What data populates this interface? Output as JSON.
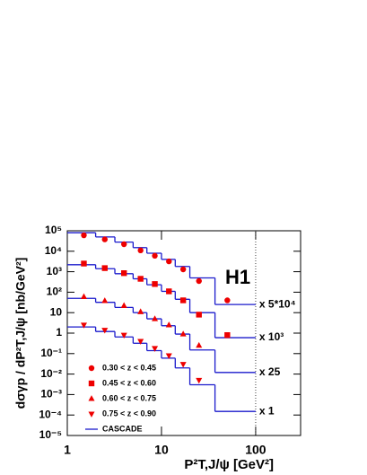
{
  "chart_data": {
    "type": "scatter",
    "xscale": "log",
    "yscale": "log",
    "xlabel": "P²T,J/ψ [GeV²]",
    "ylabel": "dσγp / dP²T,J/ψ  [nb/GeV²]",
    "annotation": "H1",
    "xlim": [
      1,
      300
    ],
    "ylim": [
      1e-05,
      100000
    ],
    "xticks": [
      1,
      10,
      100
    ],
    "yticks": [
      {
        "value": 100000,
        "label": "10⁵"
      },
      {
        "value": 10000,
        "label": "10⁴"
      },
      {
        "value": 1000,
        "label": "10³"
      },
      {
        "value": 100,
        "label": "10²"
      },
      10,
      1,
      {
        "value": 0.1,
        "label": "10⁻¹"
      },
      {
        "value": 0.01,
        "label": "10⁻²"
      },
      {
        "value": 0.001,
        "label": "10⁻³"
      },
      {
        "value": 0.0001,
        "label": "10⁻⁴"
      },
      {
        "value": 1e-05,
        "label": "10⁻⁵"
      }
    ],
    "series": [
      {
        "name": "0.30 < z < 0.45",
        "marker": "circle",
        "color": "#ee0000",
        "x": [
          1.5,
          2.5,
          4,
          6,
          8.5,
          12,
          17,
          25,
          50
        ],
        "values": [
          60000,
          38000,
          22000,
          11000,
          6000,
          3200,
          1300,
          350,
          40
        ]
      },
      {
        "name": "0.45 < z < 0.60",
        "marker": "square",
        "color": "#ee0000",
        "x": [
          1.5,
          2.5,
          4,
          6,
          8.5,
          12,
          17,
          25,
          50
        ],
        "values": [
          2500,
          1500,
          850,
          450,
          250,
          110,
          40,
          8,
          0.8
        ]
      },
      {
        "name": "0.60 < z < 0.75",
        "marker": "triangle-up",
        "color": "#ee0000",
        "x": [
          1.5,
          2.5,
          4,
          6,
          8.5,
          12,
          17,
          25
        ],
        "values": [
          60,
          38,
          22,
          11,
          5,
          2.5,
          0.9,
          0.25
        ]
      },
      {
        "name": "0.75 < z < 0.90",
        "marker": "triangle-down",
        "color": "#ee0000",
        "x": [
          1.5,
          2.5,
          4,
          6,
          8.5,
          12,
          17,
          25
        ],
        "values": [
          2.5,
          1.4,
          0.8,
          0.4,
          0.18,
          0.08,
          0.03,
          0.005
        ]
      }
    ],
    "cascade": {
      "name": "CASCADE",
      "color": "#1a1acc",
      "bins": [
        1,
        2,
        3.2,
        5,
        7,
        10,
        14,
        20,
        37,
        100
      ],
      "curves": [
        [
          80000,
          50000,
          28000,
          15000,
          8000,
          4000,
          1800,
          500,
          25
        ],
        [
          2200,
          1400,
          800,
          450,
          230,
          110,
          45,
          10,
          0.6
        ],
        [
          50,
          32,
          18,
          10,
          5,
          2.3,
          0.9,
          0.15,
          0.012
        ],
        [
          2,
          1.2,
          0.65,
          0.32,
          0.14,
          0.06,
          0.02,
          0.003,
          0.00015
        ]
      ],
      "factors": [
        "x 5*10⁴",
        "x 10³",
        "x 25",
        "x 1"
      ]
    },
    "reference_line": 100
  }
}
